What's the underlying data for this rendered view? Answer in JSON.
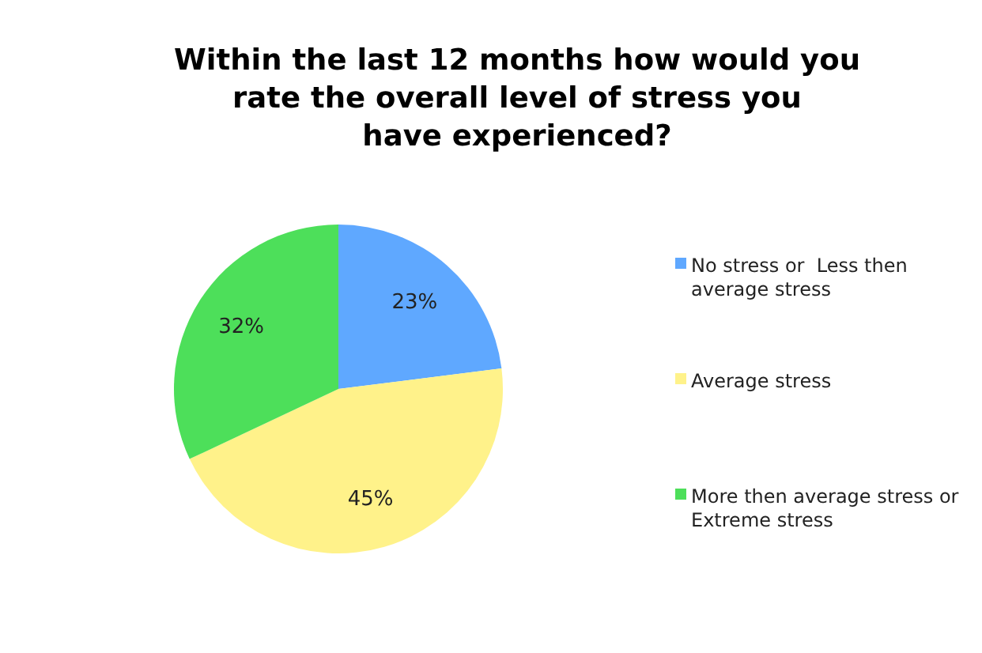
{
  "chart_data": {
    "type": "pie",
    "title": "Within the last 12 months how would you rate the overall level of stress you have experienced?",
    "categories": [
      "No stress or  Less then average stress",
      "Average stress",
      "More then average stress or Extreme stress"
    ],
    "values": [
      23,
      45,
      32
    ],
    "colors": [
      "#5fa8ff",
      "#fff28a",
      "#4ddf5a"
    ],
    "value_labels": [
      "23%",
      "45%",
      "32%"
    ],
    "legend": "right"
  }
}
